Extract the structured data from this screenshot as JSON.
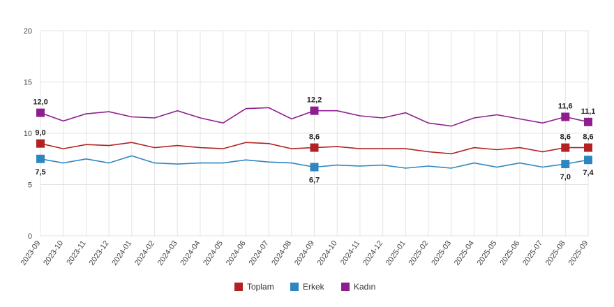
{
  "chart_data": {
    "type": "line",
    "title": "",
    "xlabel": "",
    "ylabel": "",
    "ylim": [
      0,
      20
    ],
    "yticks": [
      0,
      5,
      10,
      15,
      20
    ],
    "grid": true,
    "legend_position": "bottom",
    "categories": [
      "2023-09",
      "2023-10",
      "2023-11",
      "2023-12",
      "2024-01",
      "2024-02",
      "2024-03",
      "2024-04",
      "2024-05",
      "2024-06",
      "2024-07",
      "2024-08",
      "2024-09",
      "2024-10",
      "2024-11",
      "2024-12",
      "2025-01",
      "2025-02",
      "2025-03",
      "2025-04",
      "2025-05",
      "2025-06",
      "2025-07",
      "2025-08",
      "2025-09"
    ],
    "series": [
      {
        "name": "Toplam",
        "color": "#b22222",
        "values": [
          9.0,
          8.5,
          8.9,
          8.8,
          9.1,
          8.6,
          8.8,
          8.6,
          8.5,
          9.1,
          9.0,
          8.5,
          8.6,
          8.7,
          8.5,
          8.5,
          8.5,
          8.2,
          8.0,
          8.6,
          8.4,
          8.6,
          8.2,
          8.6,
          8.6
        ],
        "labels": {
          "0": "9,0",
          "12": "8,6",
          "23": "8,6",
          "24": "8,6"
        }
      },
      {
        "name": "Erkek",
        "color": "#2e86c1",
        "values": [
          7.5,
          7.1,
          7.5,
          7.1,
          7.8,
          7.1,
          7.0,
          7.1,
          7.1,
          7.4,
          7.2,
          7.1,
          6.7,
          6.9,
          6.8,
          6.9,
          6.6,
          6.8,
          6.6,
          7.1,
          6.7,
          7.1,
          6.7,
          7.0,
          7.4
        ],
        "labels": {
          "0": "7,5",
          "12": "6,7",
          "23": "7,0",
          "24": "7,4"
        }
      },
      {
        "name": "Kadın",
        "color": "#8e1e8e",
        "values": [
          12.0,
          11.2,
          11.9,
          12.1,
          11.6,
          11.5,
          12.2,
          11.5,
          11.0,
          12.4,
          12.5,
          11.4,
          12.2,
          12.2,
          11.7,
          11.5,
          12.0,
          11.0,
          10.7,
          11.5,
          11.8,
          11.4,
          11.0,
          11.6,
          11.1
        ],
        "labels": {
          "0": "12,0",
          "12": "12,2",
          "23": "11,6",
          "24": "11,1"
        }
      }
    ]
  }
}
